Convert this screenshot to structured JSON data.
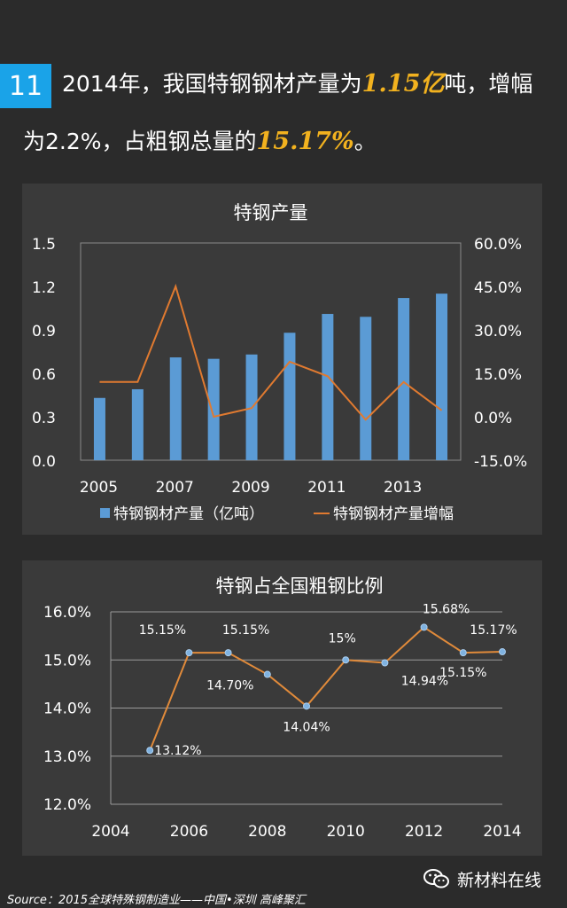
{
  "header": {
    "badge": "11",
    "line1_pre": "2014年，我国特钢钢材产量为",
    "line1_hl": "1.15亿",
    "line1_post": "吨，增幅",
    "line2_pre": "为2.2%，占粗钢总量的",
    "line2_hl": "15.17%",
    "line2_post": "。"
  },
  "chart_data": [
    {
      "type": "bar",
      "title": "特钢产量",
      "x": [
        2005,
        2006,
        2007,
        2008,
        2009,
        2010,
        2011,
        2012,
        2013,
        2014
      ],
      "x_tick_labels": [
        "2005",
        "2007",
        "2009",
        "2011",
        "2013"
      ],
      "x_tick_values": [
        2005,
        2007,
        2009,
        2011,
        2013
      ],
      "y_left": {
        "min": 0,
        "max": 1.5,
        "ticks": [
          "0.0",
          "0.3",
          "0.6",
          "0.9",
          "1.2",
          "1.5"
        ],
        "tick_values": [
          0,
          0.3,
          0.6,
          0.9,
          1.2,
          1.5
        ]
      },
      "y_right": {
        "min": -15,
        "max": 60,
        "ticks": [
          "-15.0%",
          "0.0%",
          "15.0%",
          "30.0%",
          "45.0%",
          "60.0%"
        ],
        "tick_values": [
          -15,
          0,
          15,
          30,
          45,
          60
        ]
      },
      "series": [
        {
          "name": "特钢钢材产量（亿吨）",
          "type": "bar",
          "axis": "left",
          "color": "#5b9bd5",
          "values": [
            0.43,
            0.49,
            0.71,
            0.7,
            0.73,
            0.88,
            1.01,
            0.99,
            1.12,
            1.15
          ]
        },
        {
          "name": "特钢钢材产量增幅",
          "type": "line",
          "axis": "right",
          "color": "#e07a30",
          "values": [
            12,
            12,
            45,
            0,
            3,
            19,
            14,
            -1,
            12,
            2.2
          ]
        }
      ],
      "legend": "bottom",
      "grid": false
    },
    {
      "type": "line",
      "title": "特钢占全国粗钢比例",
      "x": [
        2005,
        2006,
        2007,
        2008,
        2009,
        2010,
        2011,
        2012,
        2013,
        2014
      ],
      "x_ticks": [
        "2004",
        "2006",
        "2008",
        "2010",
        "2012",
        "2014"
      ],
      "x_tick_values": [
        2004,
        2006,
        2008,
        2010,
        2012,
        2014
      ],
      "y": {
        "min": 12,
        "max": 16,
        "ticks": [
          "12.0%",
          "13.0%",
          "14.0%",
          "15.0%",
          "16.0%"
        ],
        "tick_values": [
          12,
          13,
          14,
          15,
          16
        ]
      },
      "series": [
        {
          "color": "#e08a3a",
          "values": [
            13.12,
            15.15,
            15.15,
            14.7,
            14.04,
            15.0,
            14.94,
            15.68,
            15.15,
            15.17
          ],
          "labels": [
            "13.12%",
            "15.15%",
            "15.15%",
            "14.70%",
            "14.04%",
            "15%",
            "14.94%",
            "15.68%",
            "15.15%",
            "15.17%"
          ]
        }
      ],
      "grid": true
    }
  ],
  "footer": {
    "source": "Source：2015全球特殊钢制造业——中国•深圳 高峰聚汇",
    "brand": "新材料在线",
    "brand_icon": "wechat-icon"
  }
}
